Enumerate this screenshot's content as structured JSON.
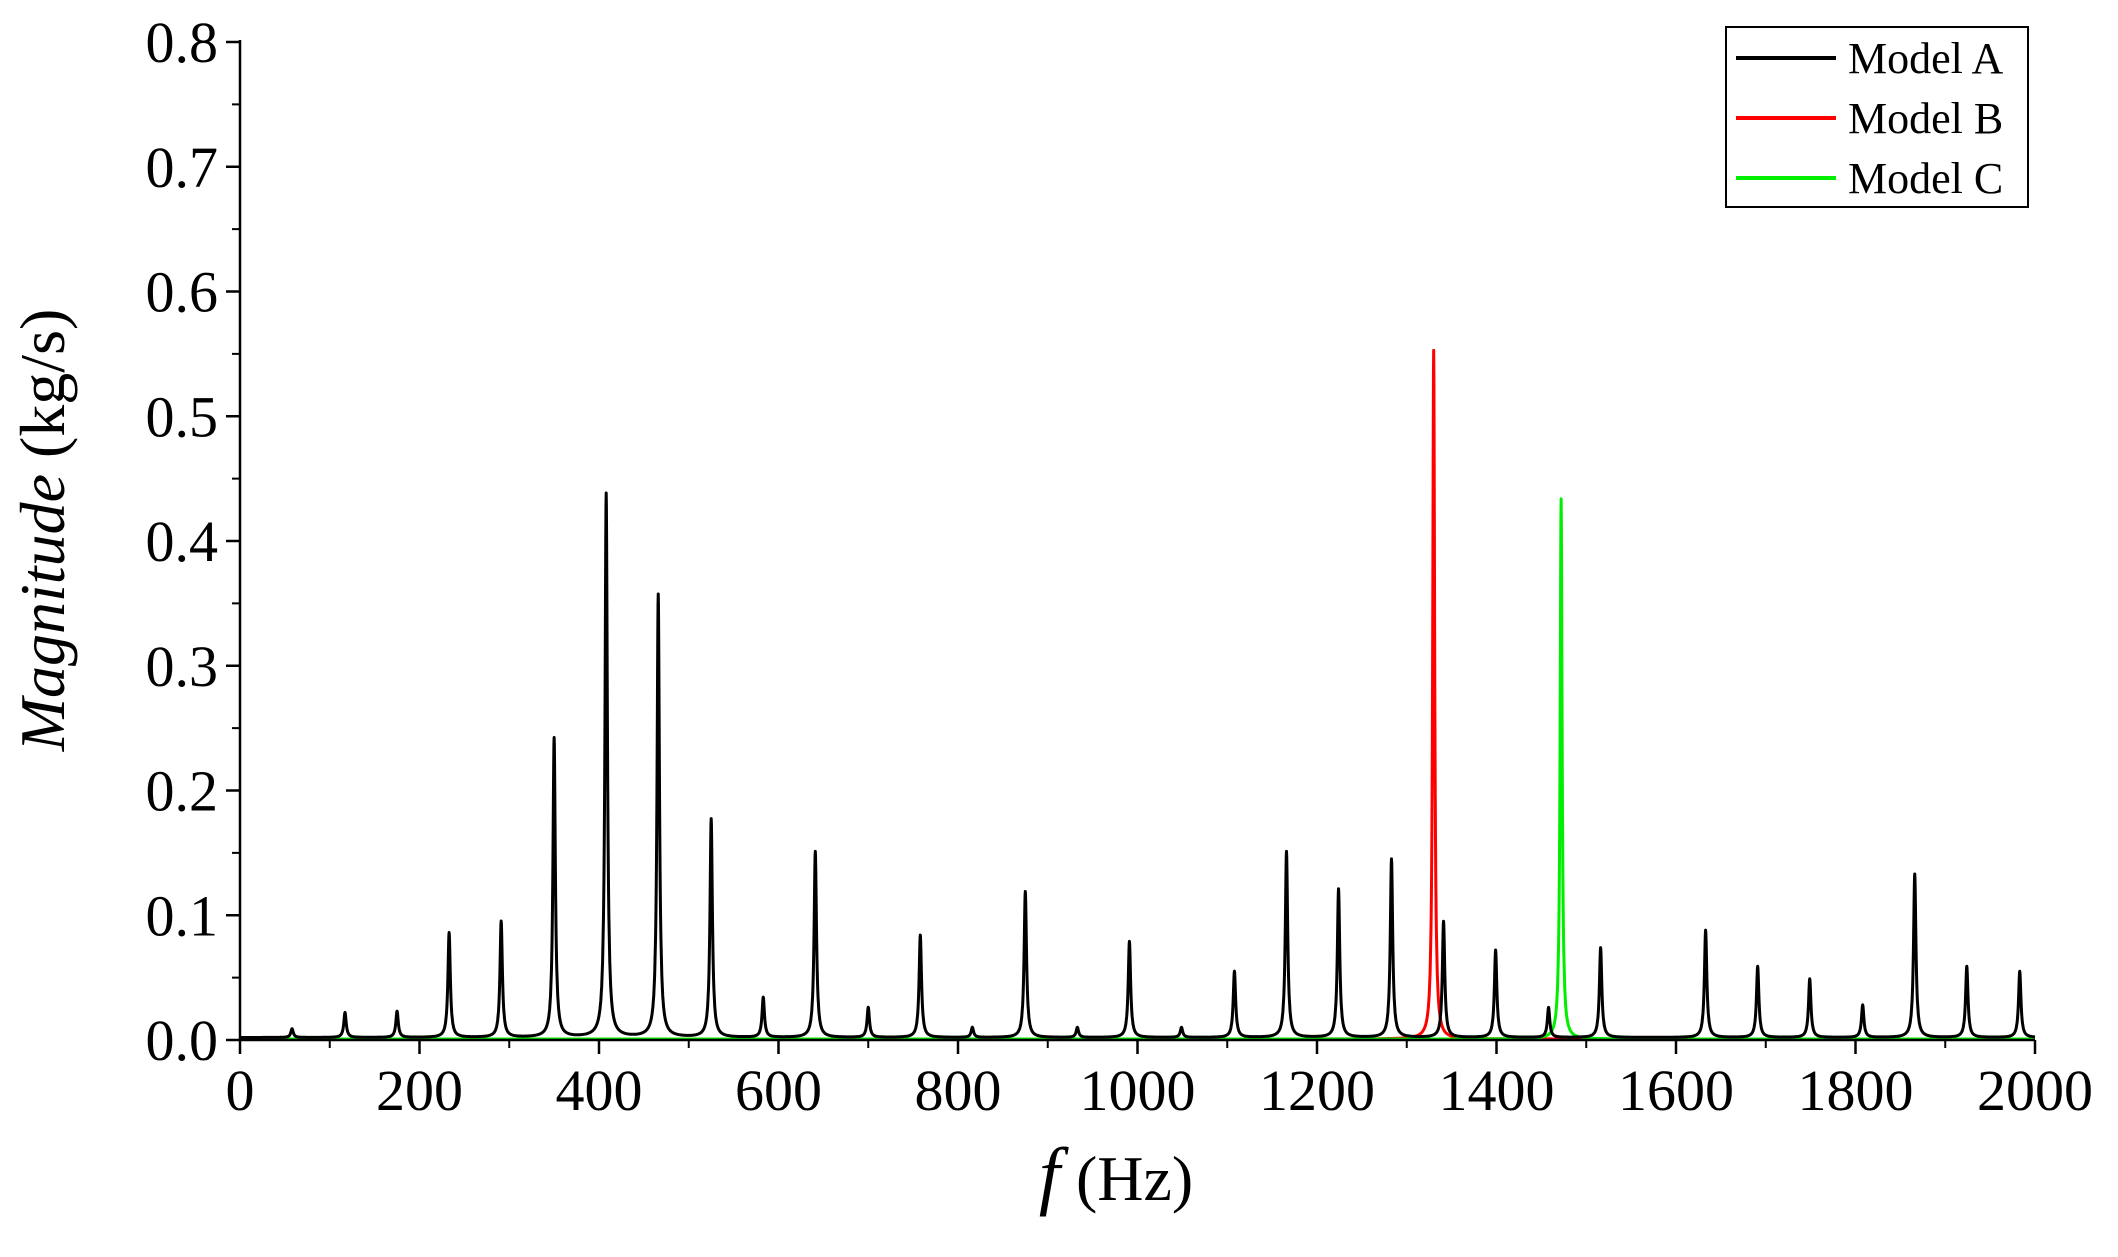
{
  "chart_data": {
    "type": "line",
    "xlabel": {
      "var": "f",
      "unit": " (Hz)"
    },
    "ylabel": {
      "var": "Magnitude",
      "unit": " (kg/s)"
    },
    "xlim": [
      0,
      2000
    ],
    "ylim": [
      0,
      0.8
    ],
    "x_ticks": [
      "0",
      "200",
      "400",
      "600",
      "800",
      "1000",
      "1200",
      "1400",
      "1600",
      "1800",
      "2000"
    ],
    "y_ticks": [
      "0.0",
      "0.1",
      "0.2",
      "0.3",
      "0.4",
      "0.5",
      "0.6",
      "0.7",
      "0.8"
    ],
    "grid": false,
    "legend_position": "top-right",
    "series": [
      {
        "name": "Model A",
        "color": "#000000",
        "peaks": [
          [
            58,
            0.007
          ],
          [
            117,
            0.02
          ],
          [
            175,
            0.021
          ],
          [
            233,
            0.084
          ],
          [
            291,
            0.093
          ],
          [
            350,
            0.24
          ],
          [
            408,
            0.436
          ],
          [
            466,
            0.355
          ],
          [
            525,
            0.175
          ],
          [
            583,
            0.032
          ],
          [
            641,
            0.149
          ],
          [
            700,
            0.024
          ],
          [
            758,
            0.082
          ],
          [
            816,
            0.008
          ],
          [
            875,
            0.117
          ],
          [
            933,
            0.008
          ],
          [
            991,
            0.077
          ],
          [
            1049,
            0.008
          ],
          [
            1108,
            0.053
          ],
          [
            1166,
            0.149
          ],
          [
            1224,
            0.119
          ],
          [
            1283,
            0.143
          ],
          [
            1341,
            0.093
          ],
          [
            1399,
            0.07
          ],
          [
            1458,
            0.024
          ],
          [
            1516,
            0.072
          ],
          [
            1633,
            0.086
          ],
          [
            1691,
            0.057
          ],
          [
            1749,
            0.047
          ],
          [
            1808,
            0.026
          ],
          [
            1866,
            0.131
          ],
          [
            1924,
            0.057
          ],
          [
            1983,
            0.053
          ]
        ]
      },
      {
        "name": "Model B",
        "color": "#ff0000",
        "peaks": [
          [
            1330,
            0.552
          ]
        ]
      },
      {
        "name": "Model C",
        "color": "#00ee00",
        "peaks": [
          [
            1472,
            0.433
          ]
        ]
      }
    ]
  }
}
